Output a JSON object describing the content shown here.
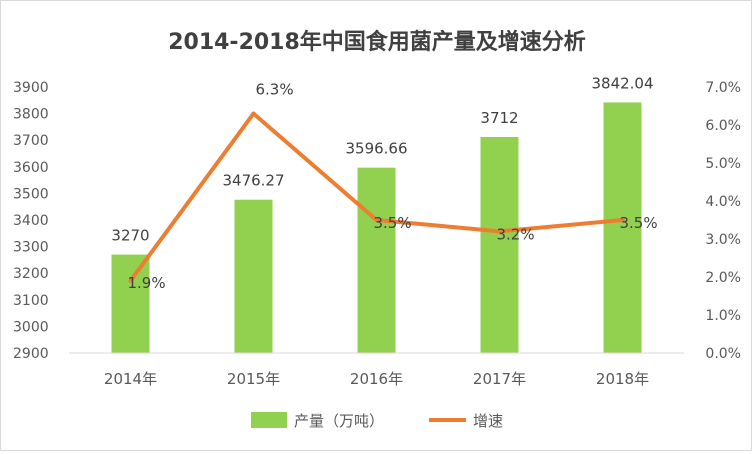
{
  "chart_data": {
    "type": "bar",
    "title": "2014-2018年中国食用菌产量及增速分析",
    "categories": [
      "2014年",
      "2015年",
      "2016年",
      "2017年",
      "2018年"
    ],
    "series": [
      {
        "name": "产量（万吨）",
        "type": "bar",
        "axis": "left",
        "color": "#92D050",
        "values": [
          3270,
          3476.27,
          3596.66,
          3712,
          3842.04
        ],
        "labels": [
          "3270",
          "3476.27",
          "3596.66",
          "3712",
          "3842.04"
        ]
      },
      {
        "name": "增速",
        "type": "line",
        "axis": "right",
        "color": "#ED7D31",
        "values": [
          1.9,
          6.3,
          3.5,
          3.2,
          3.5
        ],
        "labels": [
          "1.9%",
          "6.3%",
          "3.5%",
          "3.2%",
          "3.5%"
        ]
      }
    ],
    "y_left": {
      "range": [
        2900,
        3900
      ],
      "ticks": [
        "2900",
        "3000",
        "3100",
        "3200",
        "3300",
        "3400",
        "3500",
        "3600",
        "3700",
        "3800",
        "3900"
      ]
    },
    "y_right": {
      "range": [
        0,
        7
      ],
      "ticks": [
        "0.0%",
        "1.0%",
        "2.0%",
        "3.0%",
        "4.0%",
        "5.0%",
        "6.0%",
        "7.0%"
      ]
    },
    "grid": false,
    "legend_position": "bottom"
  }
}
